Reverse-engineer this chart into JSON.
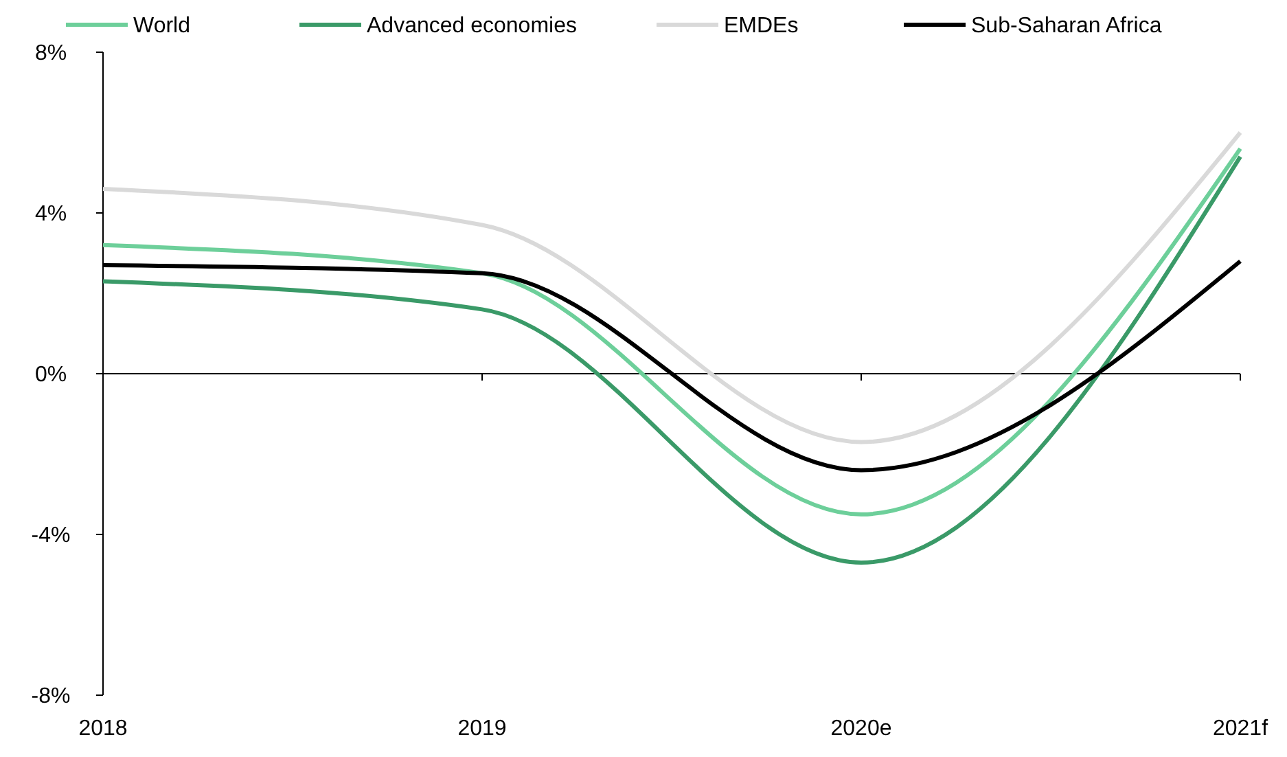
{
  "chart_data": {
    "type": "line",
    "categories": [
      "2018",
      "2019",
      "2020e",
      "2021f"
    ],
    "series": [
      {
        "name": "World",
        "color": "#6dcf9a",
        "values": [
          3.2,
          2.5,
          -3.5,
          5.6
        ]
      },
      {
        "name": "Advanced economies",
        "color": "#3a9a68",
        "values": [
          2.3,
          1.6,
          -4.7,
          5.4
        ]
      },
      {
        "name": "EMDEs",
        "color": "#d9d9d9",
        "values": [
          4.6,
          3.7,
          -1.7,
          6.0
        ]
      },
      {
        "name": "Sub-Saharan Africa",
        "color": "#000000",
        "values": [
          2.7,
          2.5,
          -2.4,
          2.8
        ]
      }
    ],
    "ylim": [
      -8,
      8
    ],
    "yticks": [
      {
        "value": -8,
        "label": "-8%"
      },
      {
        "value": -4,
        "label": "-4%"
      },
      {
        "value": 0,
        "label": "0%"
      },
      {
        "value": 4,
        "label": "4%"
      },
      {
        "value": 8,
        "label": "8%"
      }
    ],
    "legend": "top",
    "marker": "none",
    "line_style": "solid"
  }
}
